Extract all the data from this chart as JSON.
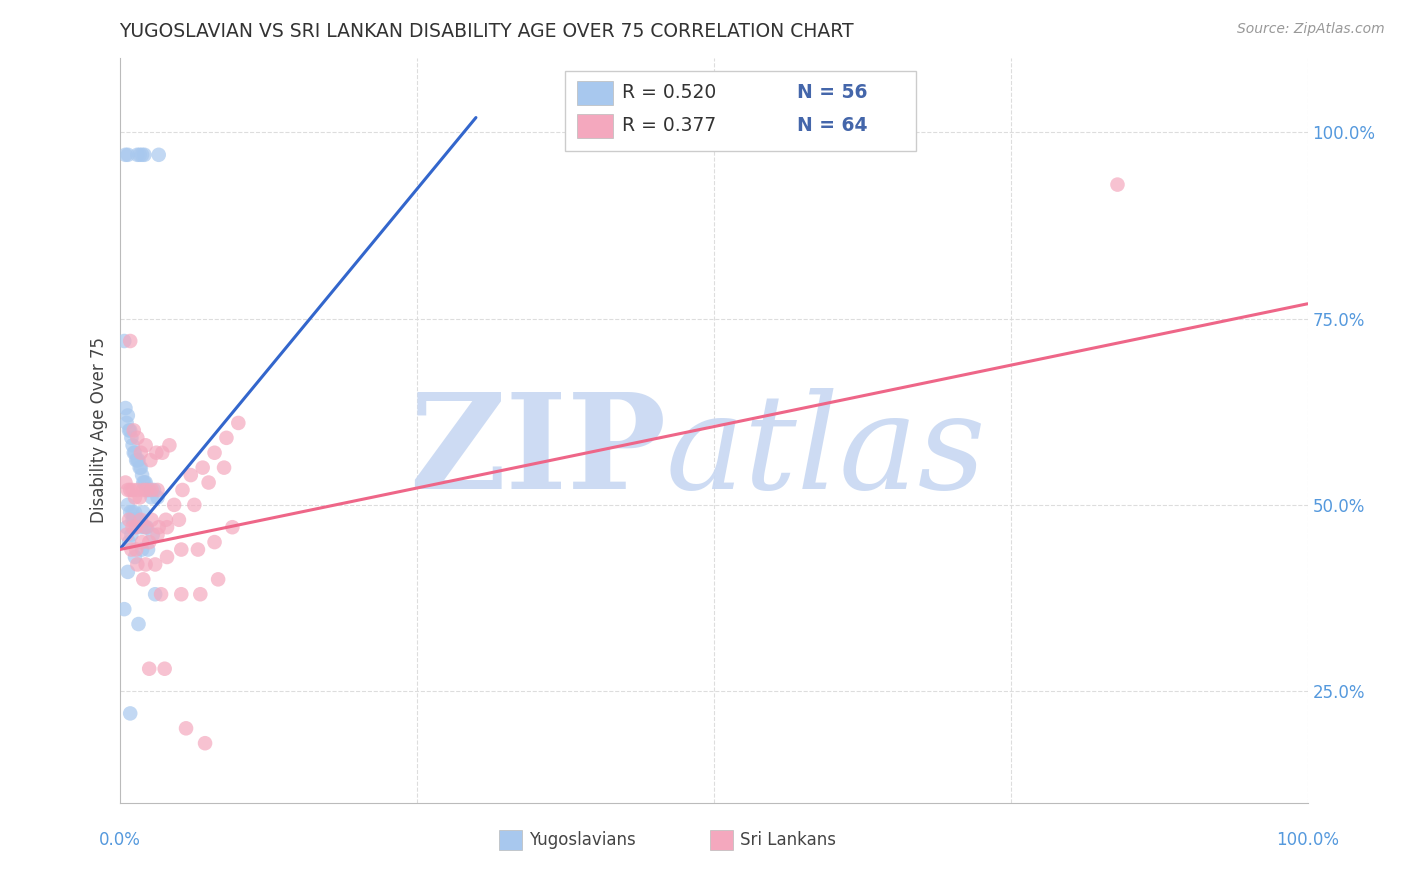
{
  "title": "YUGOSLAVIAN VS SRI LANKAN DISABILITY AGE OVER 75 CORRELATION CHART",
  "source": "Source: ZipAtlas.com",
  "ylabel": "Disability Age Over 75",
  "right_ytick_labels": [
    "25.0%",
    "50.0%",
    "75.0%",
    "100.0%"
  ],
  "right_ytick_values": [
    0.25,
    0.5,
    0.75,
    1.0
  ],
  "blue_R_label": "R = 0.520",
  "blue_N_label": "N = 56",
  "pink_R_label": "R = 0.377",
  "pink_N_label": "N = 64",
  "blue_color": "#A8C8EE",
  "pink_color": "#F4A8BE",
  "blue_line_color": "#3366CC",
  "pink_line_color": "#EE6688",
  "watermark_color": "#C8D8F2",
  "blue_x": [
    0.005,
    0.007,
    0.015,
    0.017,
    0.019,
    0.021,
    0.033,
    0.004,
    0.005,
    0.006,
    0.007,
    0.008,
    0.009,
    0.01,
    0.011,
    0.012,
    0.013,
    0.014,
    0.015,
    0.016,
    0.017,
    0.018,
    0.019,
    0.02,
    0.021,
    0.022,
    0.023,
    0.025,
    0.027,
    0.029,
    0.032,
    0.007,
    0.009,
    0.011,
    0.013,
    0.015,
    0.012,
    0.016,
    0.02,
    0.014,
    0.018,
    0.023,
    0.028,
    0.006,
    0.01,
    0.008,
    0.019,
    0.024,
    0.013,
    0.007,
    0.03,
    0.004,
    0.016,
    0.009,
    0.021,
    0.011
  ],
  "blue_y": [
    0.97,
    0.97,
    0.97,
    0.97,
    0.97,
    0.97,
    0.97,
    0.72,
    0.63,
    0.61,
    0.62,
    0.6,
    0.6,
    0.59,
    0.58,
    0.57,
    0.57,
    0.56,
    0.56,
    0.56,
    0.55,
    0.55,
    0.54,
    0.53,
    0.53,
    0.53,
    0.52,
    0.52,
    0.51,
    0.52,
    0.51,
    0.5,
    0.49,
    0.49,
    0.49,
    0.48,
    0.48,
    0.48,
    0.49,
    0.48,
    0.47,
    0.47,
    0.46,
    0.47,
    0.46,
    0.45,
    0.44,
    0.44,
    0.43,
    0.41,
    0.38,
    0.36,
    0.34,
    0.22,
    0.47,
    0.48
  ],
  "pink_x": [
    0.005,
    0.007,
    0.009,
    0.011,
    0.013,
    0.015,
    0.017,
    0.02,
    0.023,
    0.027,
    0.032,
    0.009,
    0.012,
    0.015,
    0.018,
    0.022,
    0.026,
    0.031,
    0.036,
    0.042,
    0.008,
    0.011,
    0.014,
    0.018,
    0.022,
    0.027,
    0.033,
    0.039,
    0.046,
    0.053,
    0.06,
    0.07,
    0.08,
    0.09,
    0.1,
    0.006,
    0.01,
    0.014,
    0.019,
    0.025,
    0.032,
    0.04,
    0.05,
    0.063,
    0.075,
    0.088,
    0.015,
    0.022,
    0.03,
    0.04,
    0.052,
    0.066,
    0.08,
    0.095,
    0.02,
    0.035,
    0.052,
    0.068,
    0.083,
    0.025,
    0.038,
    0.056,
    0.072,
    0.84
  ],
  "pink_y": [
    0.53,
    0.52,
    0.52,
    0.52,
    0.51,
    0.52,
    0.51,
    0.52,
    0.52,
    0.52,
    0.52,
    0.72,
    0.6,
    0.59,
    0.57,
    0.58,
    0.56,
    0.57,
    0.57,
    0.58,
    0.48,
    0.47,
    0.47,
    0.48,
    0.47,
    0.48,
    0.47,
    0.48,
    0.5,
    0.52,
    0.54,
    0.55,
    0.57,
    0.59,
    0.61,
    0.46,
    0.44,
    0.44,
    0.45,
    0.45,
    0.46,
    0.47,
    0.48,
    0.5,
    0.53,
    0.55,
    0.42,
    0.42,
    0.42,
    0.43,
    0.44,
    0.44,
    0.45,
    0.47,
    0.4,
    0.38,
    0.38,
    0.38,
    0.4,
    0.28,
    0.28,
    0.2,
    0.18,
    0.93
  ],
  "blue_trend_x": [
    0.0,
    0.3
  ],
  "blue_trend_y": [
    0.44,
    1.02
  ],
  "pink_trend_x": [
    0.0,
    1.0
  ],
  "pink_trend_y": [
    0.44,
    0.77
  ],
  "xlim": [
    0.0,
    1.0
  ],
  "ylim": [
    0.1,
    1.1
  ],
  "xtick_positions": [
    0.0,
    0.25,
    0.5,
    0.75,
    1.0
  ],
  "ytick_positions": [
    0.25,
    0.5,
    0.75,
    1.0
  ],
  "grid_color": "#DDDDDD",
  "background_color": "#FFFFFF",
  "legend_R_color": "#4466AA",
  "legend_N_color": "#4466AA",
  "axis_label_color": "#5599DD",
  "bottom_legend_items": [
    "Yugoslavians",
    "Sri Lankans"
  ]
}
